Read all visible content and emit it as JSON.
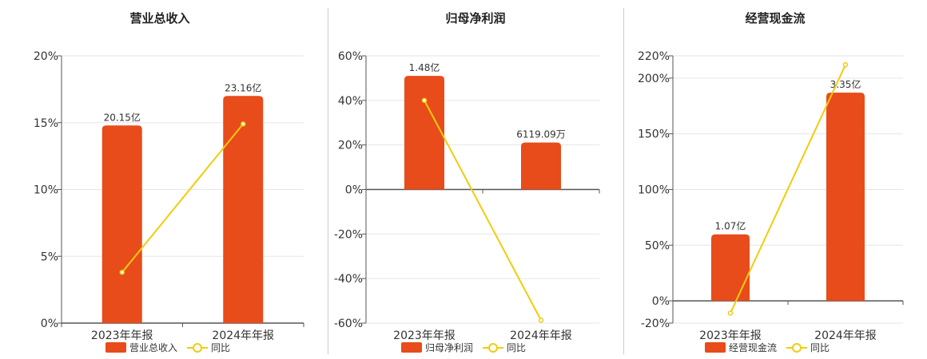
{
  "colors": {
    "bar": "#e84c1a",
    "line": "#f2cc0c",
    "axis": "#555555",
    "grid": "#e6e6e6"
  },
  "chart_data": [
    {
      "type": "bar",
      "title": "营业总收入",
      "categories": [
        "2023年年报",
        "2024年年报"
      ],
      "bar_series_name": "营业总收入",
      "bar_values": [
        20.15,
        23.16
      ],
      "bar_labels": [
        "20.15亿",
        "23.16亿"
      ],
      "bar_unit": "亿",
      "line_series_name": "同比",
      "line_values": [
        3.8,
        14.9
      ],
      "y_ticks": [
        "0%",
        "5%",
        "10%",
        "15%",
        "20%"
      ],
      "ylim": [
        0,
        20
      ],
      "tick_step": 5,
      "grid": true,
      "legend": "bottom"
    },
    {
      "type": "bar",
      "title": "归母净利润",
      "categories": [
        "2023年年报",
        "2024年年报"
      ],
      "bar_series_name": "归母净利润",
      "bar_values": [
        1.48,
        0.611909
      ],
      "bar_labels": [
        "1.48亿",
        "6119.09万"
      ],
      "bar_unit": "亿",
      "line_series_name": "同比",
      "line_values": [
        40,
        -58.7
      ],
      "y_ticks": [
        "-60%",
        "-40%",
        "-20%",
        "0%",
        "20%",
        "40%",
        "60%"
      ],
      "ylim": [
        -60,
        60
      ],
      "tick_step": 20,
      "grid": true,
      "legend": "bottom"
    },
    {
      "type": "bar",
      "title": "经营现金流",
      "categories": [
        "2023年年报",
        "2024年年报"
      ],
      "bar_series_name": "经营现金流",
      "bar_values": [
        1.07,
        3.35
      ],
      "bar_labels": [
        "1.07亿",
        "3.35亿"
      ],
      "bar_unit": "亿",
      "line_series_name": "同比",
      "line_values": [
        -11,
        212
      ],
      "y_ticks": [
        "-20%",
        "0%",
        "50%",
        "100%",
        "150%",
        "200%",
        "220%"
      ],
      "ylim": [
        -20,
        220
      ],
      "tick_step": 50,
      "grid": true,
      "legend": "bottom"
    }
  ]
}
